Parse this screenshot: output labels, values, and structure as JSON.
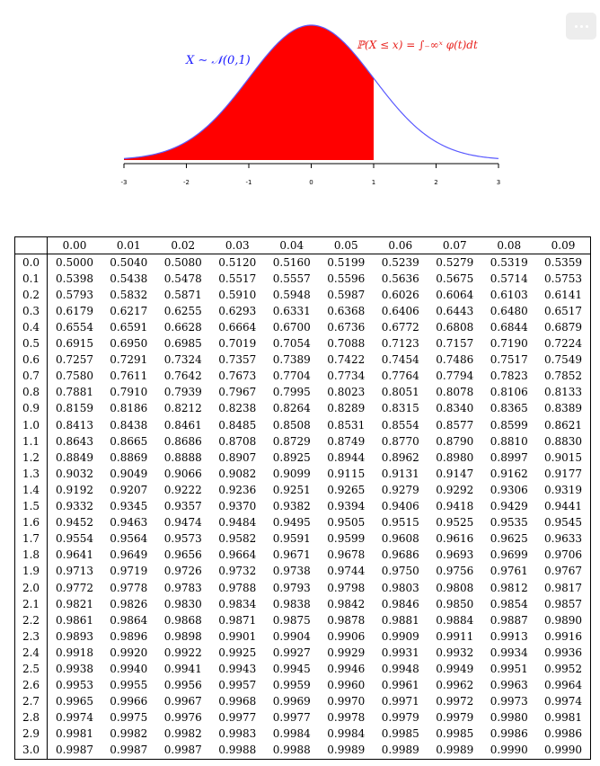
{
  "formula": {
    "left_label": "X ∼ 𝒩(0,1)",
    "right_label": "ℙ(X ≤ x) = ∫₋∞ˣ φ(t)dt",
    "left_color": "#1a1aff",
    "right_color": "#e8231f",
    "curve_color": "#5b5bff",
    "fill_color": "#ff0000"
  },
  "axis": {
    "ticks": [
      "-3",
      "-2",
      "-1",
      "0",
      "1",
      "2",
      "3"
    ],
    "shaded_upto": 1
  },
  "menu_icon": "more-horizontal-icon",
  "table": {
    "columns": [
      "0.00",
      "0.01",
      "0.02",
      "0.03",
      "0.04",
      "0.05",
      "0.06",
      "0.07",
      "0.08",
      "0.09"
    ],
    "rows": [
      {
        "z": "0.0",
        "v": [
          "0.5000",
          "0.5040",
          "0.5080",
          "0.5120",
          "0.5160",
          "0.5199",
          "0.5239",
          "0.5279",
          "0.5319",
          "0.5359"
        ]
      },
      {
        "z": "0.1",
        "v": [
          "0.5398",
          "0.5438",
          "0.5478",
          "0.5517",
          "0.5557",
          "0.5596",
          "0.5636",
          "0.5675",
          "0.5714",
          "0.5753"
        ]
      },
      {
        "z": "0.2",
        "v": [
          "0.5793",
          "0.5832",
          "0.5871",
          "0.5910",
          "0.5948",
          "0.5987",
          "0.6026",
          "0.6064",
          "0.6103",
          "0.6141"
        ]
      },
      {
        "z": "0.3",
        "v": [
          "0.6179",
          "0.6217",
          "0.6255",
          "0.6293",
          "0.6331",
          "0.6368",
          "0.6406",
          "0.6443",
          "0.6480",
          "0.6517"
        ]
      },
      {
        "z": "0.4",
        "v": [
          "0.6554",
          "0.6591",
          "0.6628",
          "0.6664",
          "0.6700",
          "0.6736",
          "0.6772",
          "0.6808",
          "0.6844",
          "0.6879"
        ]
      },
      {
        "z": "0.5",
        "v": [
          "0.6915",
          "0.6950",
          "0.6985",
          "0.7019",
          "0.7054",
          "0.7088",
          "0.7123",
          "0.7157",
          "0.7190",
          "0.7224"
        ]
      },
      {
        "z": "0.6",
        "v": [
          "0.7257",
          "0.7291",
          "0.7324",
          "0.7357",
          "0.7389",
          "0.7422",
          "0.7454",
          "0.7486",
          "0.7517",
          "0.7549"
        ]
      },
      {
        "z": "0.7",
        "v": [
          "0.7580",
          "0.7611",
          "0.7642",
          "0.7673",
          "0.7704",
          "0.7734",
          "0.7764",
          "0.7794",
          "0.7823",
          "0.7852"
        ]
      },
      {
        "z": "0.8",
        "v": [
          "0.7881",
          "0.7910",
          "0.7939",
          "0.7967",
          "0.7995",
          "0.8023",
          "0.8051",
          "0.8078",
          "0.8106",
          "0.8133"
        ]
      },
      {
        "z": "0.9",
        "v": [
          "0.8159",
          "0.8186",
          "0.8212",
          "0.8238",
          "0.8264",
          "0.8289",
          "0.8315",
          "0.8340",
          "0.8365",
          "0.8389"
        ]
      },
      {
        "z": "1.0",
        "v": [
          "0.8413",
          "0.8438",
          "0.8461",
          "0.8485",
          "0.8508",
          "0.8531",
          "0.8554",
          "0.8577",
          "0.8599",
          "0.8621"
        ]
      },
      {
        "z": "1.1",
        "v": [
          "0.8643",
          "0.8665",
          "0.8686",
          "0.8708",
          "0.8729",
          "0.8749",
          "0.8770",
          "0.8790",
          "0.8810",
          "0.8830"
        ]
      },
      {
        "z": "1.2",
        "v": [
          "0.8849",
          "0.8869",
          "0.8888",
          "0.8907",
          "0.8925",
          "0.8944",
          "0.8962",
          "0.8980",
          "0.8997",
          "0.9015"
        ]
      },
      {
        "z": "1.3",
        "v": [
          "0.9032",
          "0.9049",
          "0.9066",
          "0.9082",
          "0.9099",
          "0.9115",
          "0.9131",
          "0.9147",
          "0.9162",
          "0.9177"
        ]
      },
      {
        "z": "1.4",
        "v": [
          "0.9192",
          "0.9207",
          "0.9222",
          "0.9236",
          "0.9251",
          "0.9265",
          "0.9279",
          "0.9292",
          "0.9306",
          "0.9319"
        ]
      },
      {
        "z": "1.5",
        "v": [
          "0.9332",
          "0.9345",
          "0.9357",
          "0.9370",
          "0.9382",
          "0.9394",
          "0.9406",
          "0.9418",
          "0.9429",
          "0.9441"
        ]
      },
      {
        "z": "1.6",
        "v": [
          "0.9452",
          "0.9463",
          "0.9474",
          "0.9484",
          "0.9495",
          "0.9505",
          "0.9515",
          "0.9525",
          "0.9535",
          "0.9545"
        ]
      },
      {
        "z": "1.7",
        "v": [
          "0.9554",
          "0.9564",
          "0.9573",
          "0.9582",
          "0.9591",
          "0.9599",
          "0.9608",
          "0.9616",
          "0.9625",
          "0.9633"
        ]
      },
      {
        "z": "1.8",
        "v": [
          "0.9641",
          "0.9649",
          "0.9656",
          "0.9664",
          "0.9671",
          "0.9678",
          "0.9686",
          "0.9693",
          "0.9699",
          "0.9706"
        ]
      },
      {
        "z": "1.9",
        "v": [
          "0.9713",
          "0.9719",
          "0.9726",
          "0.9732",
          "0.9738",
          "0.9744",
          "0.9750",
          "0.9756",
          "0.9761",
          "0.9767"
        ]
      },
      {
        "z": "2.0",
        "v": [
          "0.9772",
          "0.9778",
          "0.9783",
          "0.9788",
          "0.9793",
          "0.9798",
          "0.9803",
          "0.9808",
          "0.9812",
          "0.9817"
        ]
      },
      {
        "z": "2.1",
        "v": [
          "0.9821",
          "0.9826",
          "0.9830",
          "0.9834",
          "0.9838",
          "0.9842",
          "0.9846",
          "0.9850",
          "0.9854",
          "0.9857"
        ]
      },
      {
        "z": "2.2",
        "v": [
          "0.9861",
          "0.9864",
          "0.9868",
          "0.9871",
          "0.9875",
          "0.9878",
          "0.9881",
          "0.9884",
          "0.9887",
          "0.9890"
        ]
      },
      {
        "z": "2.3",
        "v": [
          "0.9893",
          "0.9896",
          "0.9898",
          "0.9901",
          "0.9904",
          "0.9906",
          "0.9909",
          "0.9911",
          "0.9913",
          "0.9916"
        ]
      },
      {
        "z": "2.4",
        "v": [
          "0.9918",
          "0.9920",
          "0.9922",
          "0.9925",
          "0.9927",
          "0.9929",
          "0.9931",
          "0.9932",
          "0.9934",
          "0.9936"
        ]
      },
      {
        "z": "2.5",
        "v": [
          "0.9938",
          "0.9940",
          "0.9941",
          "0.9943",
          "0.9945",
          "0.9946",
          "0.9948",
          "0.9949",
          "0.9951",
          "0.9952"
        ]
      },
      {
        "z": "2.6",
        "v": [
          "0.9953",
          "0.9955",
          "0.9956",
          "0.9957",
          "0.9959",
          "0.9960",
          "0.9961",
          "0.9962",
          "0.9963",
          "0.9964"
        ]
      },
      {
        "z": "2.7",
        "v": [
          "0.9965",
          "0.9966",
          "0.9967",
          "0.9968",
          "0.9969",
          "0.9970",
          "0.9971",
          "0.9972",
          "0.9973",
          "0.9974"
        ]
      },
      {
        "z": "2.8",
        "v": [
          "0.9974",
          "0.9975",
          "0.9976",
          "0.9977",
          "0.9977",
          "0.9978",
          "0.9979",
          "0.9979",
          "0.9980",
          "0.9981"
        ]
      },
      {
        "z": "2.9",
        "v": [
          "0.9981",
          "0.9982",
          "0.9982",
          "0.9983",
          "0.9984",
          "0.9984",
          "0.9985",
          "0.9985",
          "0.9986",
          "0.9986"
        ]
      },
      {
        "z": "3.0",
        "v": [
          "0.9987",
          "0.9987",
          "0.9987",
          "0.9988",
          "0.9988",
          "0.9989",
          "0.9989",
          "0.9989",
          "0.9990",
          "0.9990"
        ]
      }
    ]
  }
}
